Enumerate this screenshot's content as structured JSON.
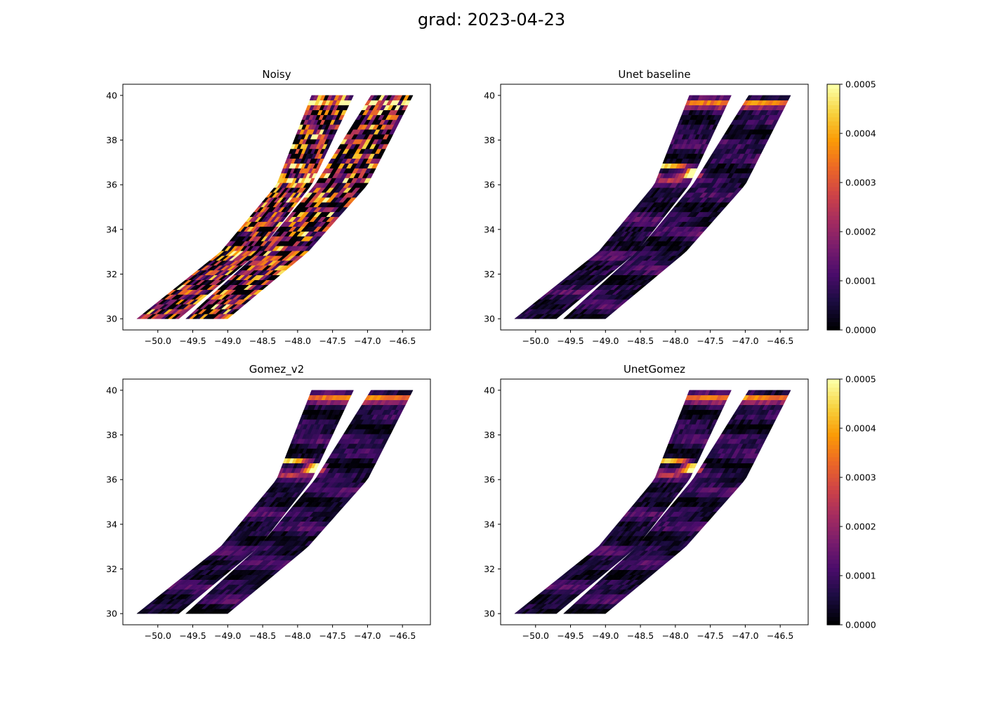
{
  "figure": {
    "title": "grad: 2023-04-23"
  },
  "colors": {
    "inferno": [
      "#000004",
      "#1b0c41",
      "#4a0c6b",
      "#781c6d",
      "#a52c60",
      "#cf4446",
      "#ed6925",
      "#fb9b06",
      "#f7d13d",
      "#fcffa4"
    ]
  },
  "chart_data": [
    {
      "type": "heatmap",
      "title": "Noisy",
      "x_ticks": [
        "−50.0",
        "−49.5",
        "−49.0",
        "−48.5",
        "−48.0",
        "−47.5",
        "−47.0",
        "−46.5"
      ],
      "y_ticks": [
        "30",
        "32",
        "34",
        "36",
        "38",
        "40"
      ],
      "xlim": [
        -50.5,
        -46.1
      ],
      "ylim": [
        29.5,
        40.5
      ],
      "noise": 1.0,
      "grid": false
    },
    {
      "type": "heatmap",
      "title": "Unet baseline",
      "x_ticks": [
        "−50.0",
        "−49.5",
        "−49.0",
        "−48.5",
        "−48.0",
        "−47.5",
        "−47.0",
        "−46.5"
      ],
      "y_ticks": [
        "30",
        "32",
        "34",
        "36",
        "38",
        "40"
      ],
      "xlim": [
        -50.5,
        -46.1
      ],
      "ylim": [
        29.5,
        40.5
      ],
      "noise": 0.15,
      "grid": false,
      "colorbar": {
        "ticks": [
          "0.0000",
          "0.0001",
          "0.0002",
          "0.0003",
          "0.0004",
          "0.0005"
        ],
        "vmin": 0,
        "vmax": 0.0005,
        "cmap": "inferno"
      }
    },
    {
      "type": "heatmap",
      "title": "Gomez_v2",
      "x_ticks": [
        "−50.0",
        "−49.5",
        "−49.0",
        "−48.5",
        "−48.0",
        "−47.5",
        "−47.0",
        "−46.5"
      ],
      "y_ticks": [
        "30",
        "32",
        "34",
        "36",
        "38",
        "40"
      ],
      "xlim": [
        -50.5,
        -46.1
      ],
      "ylim": [
        29.5,
        40.5
      ],
      "noise": 0.12,
      "grid": false
    },
    {
      "type": "heatmap",
      "title": "UnetGomez",
      "x_ticks": [
        "−50.0",
        "−49.5",
        "−49.0",
        "−48.5",
        "−48.0",
        "−47.5",
        "−47.0",
        "−46.5"
      ],
      "y_ticks": [
        "30",
        "32",
        "34",
        "36",
        "38",
        "40"
      ],
      "xlim": [
        -50.5,
        -46.1
      ],
      "ylim": [
        29.5,
        40.5
      ],
      "noise": 0.12,
      "grid": false,
      "colorbar": {
        "ticks": [
          "0.0000",
          "0.0001",
          "0.0002",
          "0.0003",
          "0.0004",
          "0.0005"
        ],
        "vmin": 0,
        "vmax": 0.0005,
        "cmap": "inferno"
      }
    }
  ]
}
